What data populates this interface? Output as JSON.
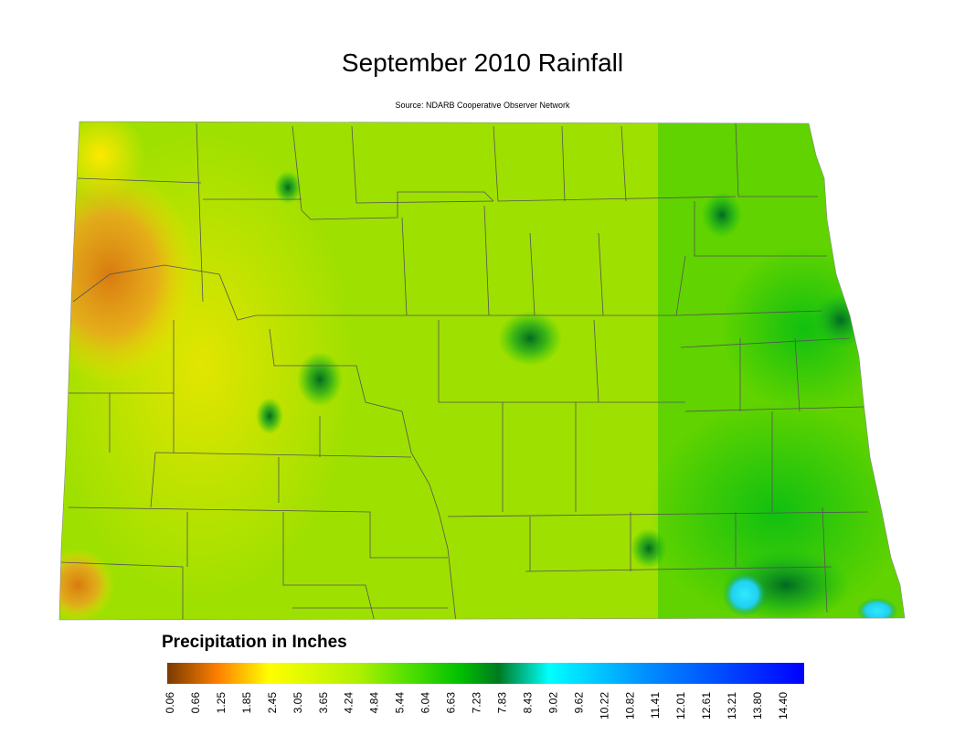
{
  "header": {
    "title": "September 2010 Rainfall",
    "subtitle": "Source: NDARB Cooperative Observer Network"
  },
  "legend": {
    "title": "Precipitation in Inches",
    "ticks": [
      "0.06",
      "0.66",
      "1.25",
      "1.85",
      "2.45",
      "3.05",
      "3.65",
      "4.24",
      "4.84",
      "5.44",
      "6.04",
      "6.63",
      "7.23",
      "7.83",
      "8.43",
      "9.02",
      "9.62",
      "10.22",
      "10.82",
      "11.41",
      "12.01",
      "12.61",
      "13.21",
      "13.80",
      "14.40"
    ]
  }
}
